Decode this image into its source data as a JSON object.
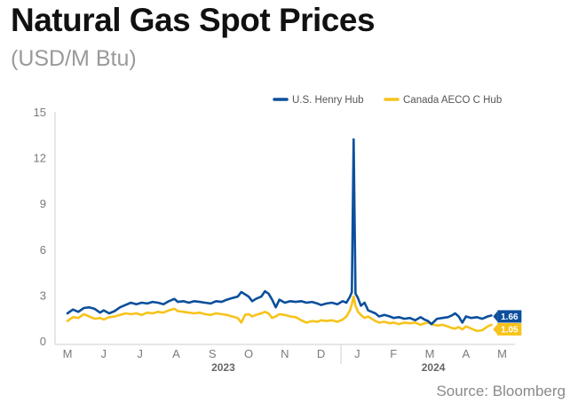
{
  "title": "Natural Gas Spot Prices",
  "subtitle": "(USD/M Btu)",
  "source": "Source: Bloomberg",
  "colors": {
    "henry": "#0b4f9c",
    "aeco": "#f7c31a"
  },
  "chart_data": {
    "type": "line",
    "ylim": [
      0,
      15
    ],
    "yticks": [
      "0",
      "3",
      "6",
      "9",
      "12",
      "15"
    ],
    "month_labels": [
      "M",
      "J",
      "J",
      "A",
      "S",
      "O",
      "N",
      "D",
      "J",
      "F",
      "M",
      "A",
      "M"
    ],
    "year_labels": [
      "2023",
      "2024"
    ],
    "legend_position": "top-right",
    "grid": false,
    "series": [
      {
        "name": "U.S. Henry Hub",
        "end_label": "1.66",
        "points": [
          [
            0.0,
            1.8
          ],
          [
            0.15,
            2.05
          ],
          [
            0.3,
            1.9
          ],
          [
            0.45,
            2.15
          ],
          [
            0.6,
            2.2
          ],
          [
            0.75,
            2.1
          ],
          [
            0.9,
            1.85
          ],
          [
            1.0,
            2.0
          ],
          [
            1.15,
            1.8
          ],
          [
            1.3,
            1.95
          ],
          [
            1.45,
            2.2
          ],
          [
            1.6,
            2.35
          ],
          [
            1.75,
            2.5
          ],
          [
            1.9,
            2.4
          ],
          [
            2.05,
            2.5
          ],
          [
            2.2,
            2.45
          ],
          [
            2.35,
            2.55
          ],
          [
            2.5,
            2.5
          ],
          [
            2.65,
            2.4
          ],
          [
            2.8,
            2.6
          ],
          [
            2.95,
            2.75
          ],
          [
            3.05,
            2.55
          ],
          [
            3.2,
            2.6
          ],
          [
            3.35,
            2.5
          ],
          [
            3.5,
            2.6
          ],
          [
            3.65,
            2.55
          ],
          [
            3.8,
            2.5
          ],
          [
            3.95,
            2.45
          ],
          [
            4.1,
            2.6
          ],
          [
            4.25,
            2.55
          ],
          [
            4.4,
            2.7
          ],
          [
            4.55,
            2.8
          ],
          [
            4.7,
            2.9
          ],
          [
            4.8,
            3.2
          ],
          [
            4.9,
            3.05
          ],
          [
            5.0,
            2.9
          ],
          [
            5.1,
            2.6
          ],
          [
            5.2,
            2.75
          ],
          [
            5.35,
            2.9
          ],
          [
            5.45,
            3.25
          ],
          [
            5.55,
            3.1
          ],
          [
            5.65,
            2.7
          ],
          [
            5.75,
            2.2
          ],
          [
            5.85,
            2.7
          ],
          [
            6.0,
            2.5
          ],
          [
            6.15,
            2.6
          ],
          [
            6.3,
            2.55
          ],
          [
            6.45,
            2.6
          ],
          [
            6.6,
            2.5
          ],
          [
            6.75,
            2.55
          ],
          [
            6.9,
            2.45
          ],
          [
            7.0,
            2.35
          ],
          [
            7.15,
            2.45
          ],
          [
            7.3,
            2.5
          ],
          [
            7.45,
            2.4
          ],
          [
            7.6,
            2.6
          ],
          [
            7.7,
            2.5
          ],
          [
            7.8,
            2.9
          ],
          [
            7.85,
            3.2
          ],
          [
            7.9,
            13.2
          ],
          [
            7.95,
            3.1
          ],
          [
            8.02,
            2.8
          ],
          [
            8.1,
            2.3
          ],
          [
            8.2,
            2.5
          ],
          [
            8.3,
            2.0
          ],
          [
            8.4,
            1.9
          ],
          [
            8.5,
            1.8
          ],
          [
            8.6,
            1.6
          ],
          [
            8.75,
            1.7
          ],
          [
            8.9,
            1.6
          ],
          [
            9.0,
            1.5
          ],
          [
            9.15,
            1.55
          ],
          [
            9.3,
            1.45
          ],
          [
            9.45,
            1.5
          ],
          [
            9.6,
            1.35
          ],
          [
            9.75,
            1.55
          ],
          [
            9.85,
            1.4
          ],
          [
            9.95,
            1.3
          ],
          [
            10.05,
            1.1
          ],
          [
            10.2,
            1.45
          ],
          [
            10.35,
            1.5
          ],
          [
            10.5,
            1.55
          ],
          [
            10.6,
            1.65
          ],
          [
            10.7,
            1.8
          ],
          [
            10.8,
            1.6
          ],
          [
            10.9,
            1.2
          ],
          [
            11.0,
            1.6
          ],
          [
            11.15,
            1.5
          ],
          [
            11.3,
            1.55
          ],
          [
            11.45,
            1.45
          ],
          [
            11.6,
            1.6
          ],
          [
            11.7,
            1.66
          ]
        ]
      },
      {
        "name": "Canada AECO C Hub",
        "end_label": "1.05",
        "points": [
          [
            0.0,
            1.3
          ],
          [
            0.15,
            1.55
          ],
          [
            0.3,
            1.5
          ],
          [
            0.45,
            1.75
          ],
          [
            0.6,
            1.6
          ],
          [
            0.75,
            1.45
          ],
          [
            0.9,
            1.5
          ],
          [
            1.0,
            1.4
          ],
          [
            1.15,
            1.55
          ],
          [
            1.3,
            1.6
          ],
          [
            1.45,
            1.7
          ],
          [
            1.6,
            1.8
          ],
          [
            1.75,
            1.75
          ],
          [
            1.9,
            1.8
          ],
          [
            2.05,
            1.7
          ],
          [
            2.2,
            1.85
          ],
          [
            2.35,
            1.8
          ],
          [
            2.5,
            1.9
          ],
          [
            2.65,
            1.85
          ],
          [
            2.8,
            2.0
          ],
          [
            2.95,
            2.1
          ],
          [
            3.05,
            1.95
          ],
          [
            3.2,
            1.9
          ],
          [
            3.35,
            1.85
          ],
          [
            3.5,
            1.8
          ],
          [
            3.65,
            1.85
          ],
          [
            3.8,
            1.75
          ],
          [
            3.95,
            1.7
          ],
          [
            4.1,
            1.8
          ],
          [
            4.25,
            1.75
          ],
          [
            4.4,
            1.7
          ],
          [
            4.55,
            1.6
          ],
          [
            4.7,
            1.5
          ],
          [
            4.8,
            1.2
          ],
          [
            4.9,
            1.7
          ],
          [
            5.0,
            1.75
          ],
          [
            5.1,
            1.6
          ],
          [
            5.2,
            1.7
          ],
          [
            5.35,
            1.8
          ],
          [
            5.45,
            1.9
          ],
          [
            5.55,
            1.8
          ],
          [
            5.65,
            1.5
          ],
          [
            5.75,
            1.6
          ],
          [
            5.85,
            1.75
          ],
          [
            6.0,
            1.7
          ],
          [
            6.15,
            1.6
          ],
          [
            6.3,
            1.55
          ],
          [
            6.45,
            1.35
          ],
          [
            6.6,
            1.2
          ],
          [
            6.75,
            1.3
          ],
          [
            6.9,
            1.25
          ],
          [
            7.0,
            1.35
          ],
          [
            7.15,
            1.3
          ],
          [
            7.3,
            1.35
          ],
          [
            7.45,
            1.25
          ],
          [
            7.6,
            1.4
          ],
          [
            7.7,
            1.6
          ],
          [
            7.8,
            2.0
          ],
          [
            7.85,
            2.4
          ],
          [
            7.9,
            2.9
          ],
          [
            7.95,
            2.3
          ],
          [
            8.02,
            1.9
          ],
          [
            8.1,
            1.7
          ],
          [
            8.2,
            1.5
          ],
          [
            8.3,
            1.6
          ],
          [
            8.4,
            1.45
          ],
          [
            8.5,
            1.3
          ],
          [
            8.6,
            1.2
          ],
          [
            8.75,
            1.25
          ],
          [
            8.9,
            1.15
          ],
          [
            9.0,
            1.2
          ],
          [
            9.15,
            1.1
          ],
          [
            9.3,
            1.2
          ],
          [
            9.45,
            1.15
          ],
          [
            9.6,
            1.2
          ],
          [
            9.75,
            1.05
          ],
          [
            9.85,
            1.15
          ],
          [
            9.95,
            1.2
          ],
          [
            10.05,
            1.1
          ],
          [
            10.2,
            1.0
          ],
          [
            10.35,
            1.05
          ],
          [
            10.5,
            0.95
          ],
          [
            10.6,
            0.85
          ],
          [
            10.7,
            0.8
          ],
          [
            10.8,
            0.9
          ],
          [
            10.9,
            0.75
          ],
          [
            11.0,
            0.95
          ],
          [
            11.15,
            0.8
          ],
          [
            11.3,
            0.65
          ],
          [
            11.45,
            0.7
          ],
          [
            11.6,
            0.95
          ],
          [
            11.7,
            1.05
          ]
        ]
      }
    ]
  }
}
